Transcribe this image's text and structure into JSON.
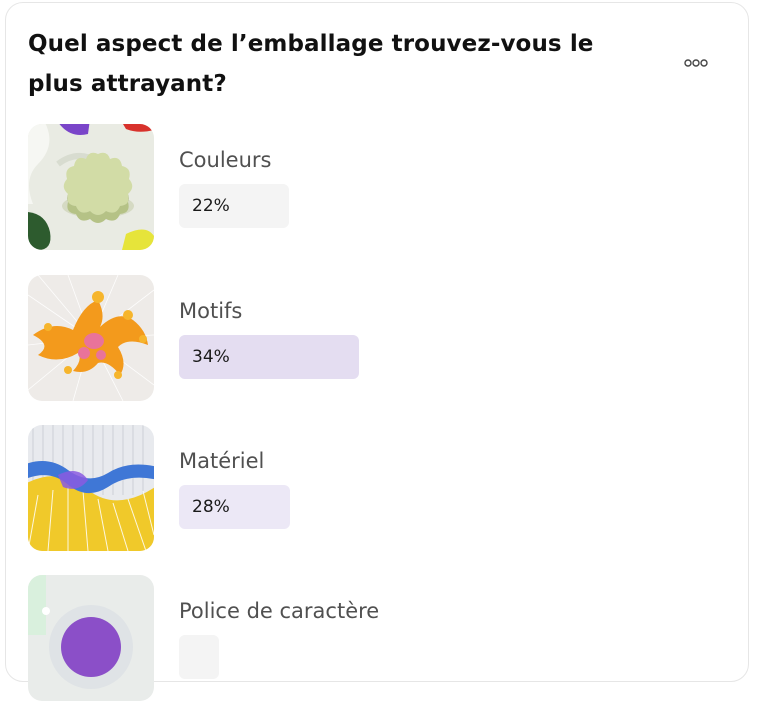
{
  "poll": {
    "question": "Quel aspect de l’emballage trouvez-vous le plus attrayant?",
    "menu_icon": "more-horizontal-icon",
    "options": [
      {
        "label": "Couleurs",
        "percent": "22%",
        "percent_value": 22,
        "bar_color": "#f4f4f4",
        "image": "green-flower-shape-image"
      },
      {
        "label": "Motifs",
        "percent": "34%",
        "percent_value": 34,
        "bar_color": "#e4ddf1",
        "image": "orange-coral-image"
      },
      {
        "label": "Matériel",
        "percent": "28%",
        "percent_value": 28,
        "bar_color": "#ece8f6",
        "image": "blue-yellow-wave-image"
      },
      {
        "label": "Police de caractère",
        "percent": "",
        "percent_value": null,
        "bar_color": "#f4f4f4",
        "image": "purple-sphere-image"
      }
    ]
  },
  "colors": {
    "text_primary": "#111111",
    "text_label": "#505050",
    "card_border": "#e6e6e6"
  }
}
